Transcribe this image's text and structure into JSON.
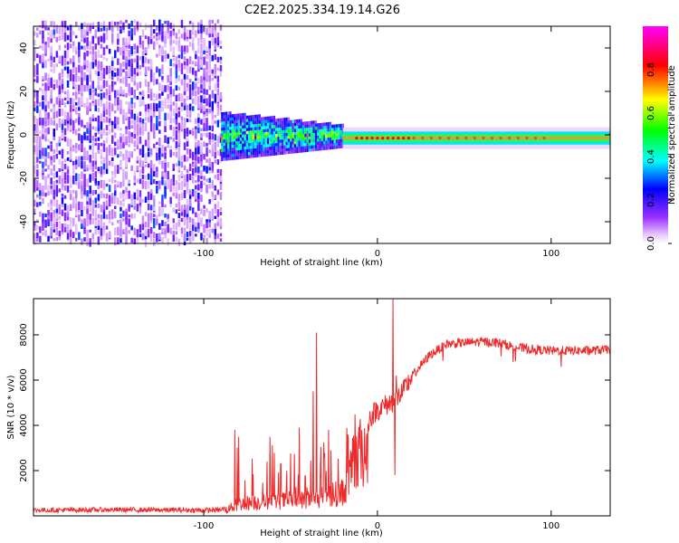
{
  "title": "C2E2.2025.334.19.14.G26",
  "chart_data": [
    {
      "type": "heatmap",
      "title": "C2E2.2025.334.19.14.G26",
      "xlabel": "Height of straight line (km)",
      "ylabel": "Frequency (Hz)",
      "xlim": [
        -198,
        134
      ],
      "ylim": [
        -50,
        50
      ],
      "x_ticks": [
        -100,
        0,
        100
      ],
      "y_ticks": [
        -40,
        -20,
        0,
        20,
        40
      ],
      "colorbar": {
        "label": "Normalized spectral amplitude",
        "range": [
          0,
          1
        ],
        "ticks": [
          0.0,
          0.2,
          0.4,
          0.6,
          0.8
        ],
        "tick_labels": [
          "0.0",
          "0.2",
          "0.4",
          "0.6",
          "0.8"
        ],
        "colors": [
          "#ffffff",
          "#9b30ff",
          "#0000ff",
          "#00ffff",
          "#00ff00",
          "#ffff00",
          "#ff0000",
          "#ff00ff"
        ]
      },
      "regions": [
        {
          "name": "noise",
          "x_range": [
            -198,
            -90
          ],
          "freq_range": [
            -50,
            50
          ],
          "amplitude": [
            0.05,
            0.3
          ]
        },
        {
          "name": "transition",
          "x_range": [
            -90,
            -20
          ],
          "freq_half_width": [
            10,
            4
          ],
          "amplitude": [
            0.2,
            0.6
          ]
        },
        {
          "name": "tone",
          "x_range": [
            -20,
            134
          ],
          "freq": -1.5,
          "half_width": 3,
          "amplitude": [
            0.5,
            1.0
          ]
        }
      ]
    },
    {
      "type": "line",
      "xlabel": "Height of straight line (km)",
      "ylabel": "SNR (10 * v/v)",
      "xlim": [
        -198,
        134
      ],
      "ylim": [
        0,
        9600
      ],
      "x_ticks": [
        -100,
        0,
        100
      ],
      "y_ticks": [
        2000,
        4000,
        6000,
        8000
      ],
      "color": "#ee2a2a",
      "series": [
        {
          "name": "SNR",
          "x": [
            -198,
            -150,
            -100,
            -90,
            -85,
            -80,
            -70,
            -60,
            -50,
            -40,
            -30,
            -20,
            -15,
            -10,
            -5,
            0,
            5,
            10,
            15,
            20,
            30,
            40,
            50,
            60,
            70,
            80,
            90,
            100,
            110,
            120,
            134
          ],
          "y": [
            250,
            270,
            250,
            260,
            450,
            700,
            800,
            850,
            900,
            950,
            1100,
            1400,
            2500,
            3600,
            4300,
            4700,
            4900,
            5100,
            5500,
            6200,
            7100,
            7600,
            7650,
            7700,
            7650,
            7450,
            7350,
            7300,
            7300,
            7300,
            7350
          ]
        },
        {
          "name": "spikes",
          "x": [
            -82,
            -80,
            -62,
            -45,
            -37,
            -35,
            -28,
            -17,
            9,
            10,
            11
          ],
          "y": [
            3800,
            3500,
            3500,
            3900,
            5500,
            8100,
            3800,
            3600,
            9600,
            1800,
            6200
          ]
        }
      ]
    }
  ]
}
